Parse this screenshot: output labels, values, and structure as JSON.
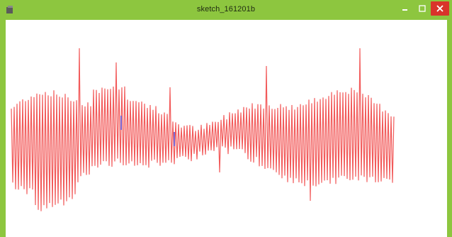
{
  "window": {
    "title": "sketch_161201b",
    "frame_color": "#8dc63f",
    "icons": {
      "app": "processing-app-icon",
      "minimize": "minimize-icon",
      "maximize": "maximize-icon",
      "close": "close-icon"
    }
  },
  "colors": {
    "waveform": "#f25a5a",
    "close_button": "#d9342b",
    "accent_marks": "#7a6bd8"
  }
}
